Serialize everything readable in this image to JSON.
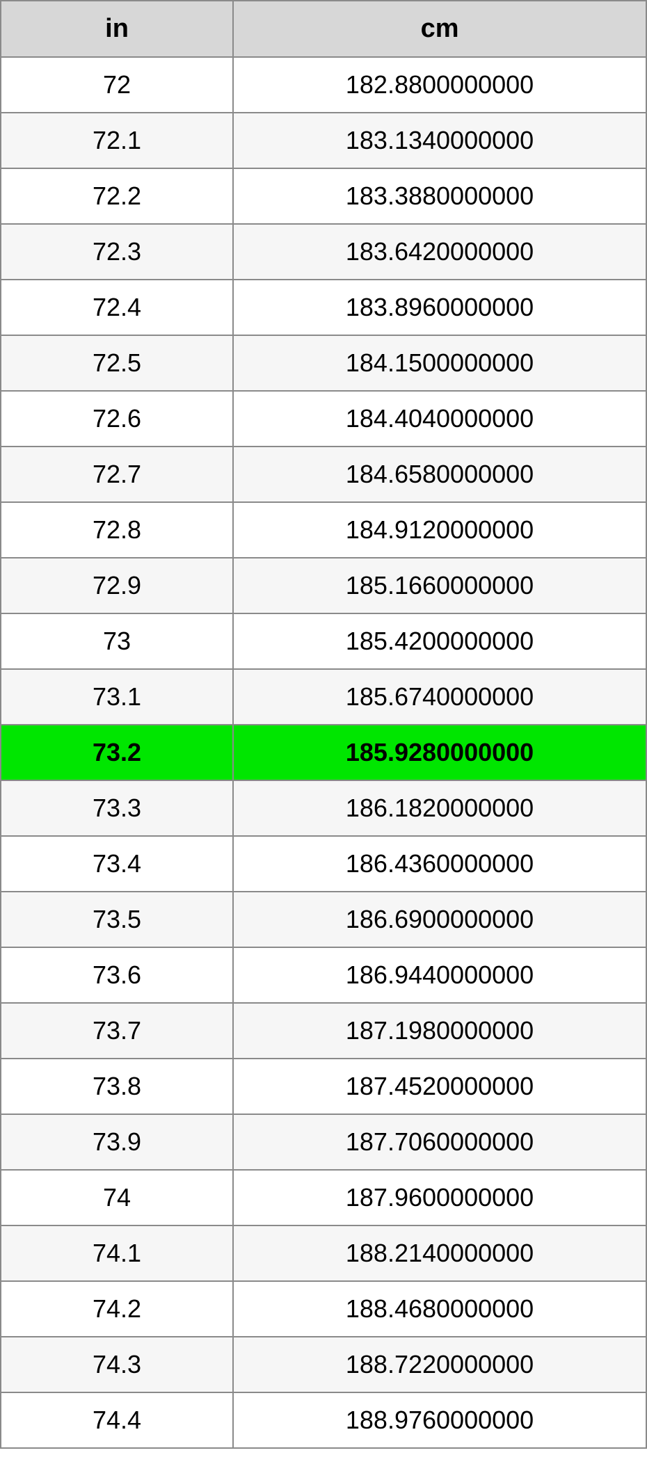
{
  "table": {
    "columns": [
      "in",
      "cm"
    ],
    "header_bg": "#d7d7d7",
    "row_bg_even": "#ffffff",
    "row_bg_odd": "#f6f6f6",
    "highlight_bg": "#00e600",
    "highlight_index": 12,
    "border_color": "#8a8a8a",
    "header_fontsize": 38,
    "cell_fontsize": 36,
    "rows": [
      [
        "72",
        "182.8800000000"
      ],
      [
        "72.1",
        "183.1340000000"
      ],
      [
        "72.2",
        "183.3880000000"
      ],
      [
        "72.3",
        "183.6420000000"
      ],
      [
        "72.4",
        "183.8960000000"
      ],
      [
        "72.5",
        "184.1500000000"
      ],
      [
        "72.6",
        "184.4040000000"
      ],
      [
        "72.7",
        "184.6580000000"
      ],
      [
        "72.8",
        "184.9120000000"
      ],
      [
        "72.9",
        "185.1660000000"
      ],
      [
        "73",
        "185.4200000000"
      ],
      [
        "73.1",
        "185.6740000000"
      ],
      [
        "73.2",
        "185.9280000000"
      ],
      [
        "73.3",
        "186.1820000000"
      ],
      [
        "73.4",
        "186.4360000000"
      ],
      [
        "73.5",
        "186.6900000000"
      ],
      [
        "73.6",
        "186.9440000000"
      ],
      [
        "73.7",
        "187.1980000000"
      ],
      [
        "73.8",
        "187.4520000000"
      ],
      [
        "73.9",
        "187.7060000000"
      ],
      [
        "74",
        "187.9600000000"
      ],
      [
        "74.1",
        "188.2140000000"
      ],
      [
        "74.2",
        "188.4680000000"
      ],
      [
        "74.3",
        "188.7220000000"
      ],
      [
        "74.4",
        "188.9760000000"
      ]
    ]
  }
}
